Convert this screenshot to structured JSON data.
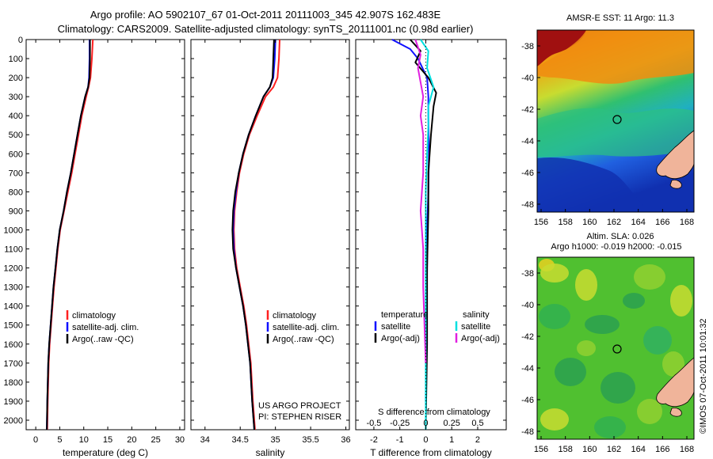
{
  "title": {
    "line1": "Argo profile: AO 5902107_67 01-Oct-2011 20111003_345 42.907S 162.483E",
    "line2": "Climatology: CARS2009. Satellite-adjusted climatology: synTS_20111001.nc (0.98d earlier)"
  },
  "credits": {
    "project": "US ARGO PROJECT",
    "pi": "PI: STEPHEN RISER",
    "stamp": "©IMOS 07-Oct-2011 10:01:32"
  },
  "colors": {
    "climatology": "#ff2020",
    "satellite": "#1010ff",
    "argo": "#000000",
    "sal_satellite": "#00e0e0",
    "sal_argo": "#e020e0",
    "land": "#f0b49a"
  },
  "chart_data": [
    {
      "id": "temperature",
      "type": "line",
      "xlabel": "temperature (deg C)",
      "ylabel": "",
      "xlim": [
        -2,
        31
      ],
      "ylim": [
        2050,
        0
      ],
      "xticks": [
        0,
        5,
        10,
        15,
        20,
        25,
        30
      ],
      "xtick_labels": [
        "0",
        "5",
        "10",
        "15",
        "20",
        "25",
        "30"
      ],
      "yticks": [
        0,
        100,
        200,
        300,
        400,
        500,
        600,
        700,
        800,
        900,
        1000,
        1100,
        1200,
        1300,
        1400,
        1500,
        1600,
        1700,
        1800,
        1900,
        2000
      ],
      "ytick_labels": [
        "0",
        "100",
        "200",
        "300",
        "400",
        "500",
        "600",
        "700",
        "800",
        "900",
        "1000",
        "1100",
        "1200",
        "1300",
        "1400",
        "1500",
        "1600",
        "1700",
        "1800",
        "1900",
        "2000"
      ],
      "legend": [
        "climatology",
        "satellite-adj. clim.",
        "Argo(..raw -QC)"
      ],
      "series": [
        {
          "name": "climatology",
          "color": "#ff2020",
          "x": [
            11.9,
            11.7,
            11.4,
            11.0,
            10.5,
            9.6,
            8.9,
            8.2,
            7.5,
            6.7,
            5.9,
            5.1,
            4.6,
            4.2,
            3.8,
            3.5,
            3.2,
            2.9,
            2.7,
            2.5,
            2.4
          ],
          "y": [
            0,
            100,
            200,
            250,
            300,
            400,
            500,
            600,
            700,
            800,
            900,
            1000,
            1100,
            1200,
            1300,
            1400,
            1500,
            1600,
            1700,
            1900,
            2050
          ]
        },
        {
          "name": "satellite",
          "color": "#1010ff",
          "x": [
            11.2,
            11.2,
            11.1,
            10.9,
            10.3,
            9.4,
            8.7,
            8.0,
            7.3,
            6.5,
            5.8,
            5.0,
            4.5,
            4.1,
            3.7,
            3.4,
            3.1,
            2.8,
            2.6,
            2.4,
            2.3
          ],
          "y": [
            0,
            100,
            200,
            250,
            300,
            400,
            500,
            600,
            700,
            800,
            900,
            1000,
            1100,
            1200,
            1300,
            1400,
            1500,
            1600,
            1700,
            1900,
            2050
          ]
        },
        {
          "name": "argo",
          "color": "#000000",
          "x": [
            11.3,
            11.3,
            11.2,
            10.9,
            10.3,
            9.4,
            8.7,
            8.0,
            7.3,
            6.5,
            5.8,
            5.0,
            4.5,
            4.1,
            3.7,
            3.4,
            3.1,
            2.8,
            2.6,
            2.4,
            2.3
          ],
          "y": [
            0,
            100,
            200,
            250,
            300,
            400,
            500,
            600,
            700,
            800,
            900,
            1000,
            1100,
            1200,
            1300,
            1400,
            1500,
            1600,
            1700,
            1900,
            2050
          ]
        }
      ]
    },
    {
      "id": "salinity",
      "type": "line",
      "xlabel": "salinity",
      "ylabel": "",
      "xlim": [
        33.8,
        36.05
      ],
      "ylim": [
        2050,
        0
      ],
      "xticks": [
        34,
        34.5,
        35,
        35.5,
        36
      ],
      "xtick_labels": [
        "34",
        "34.5",
        "35",
        "35.5",
        "36"
      ],
      "legend": [
        "climatology",
        "satellite-adj. clim.",
        "Argo(..raw -QC)"
      ],
      "series": [
        {
          "name": "climatology",
          "color": "#ff2020",
          "x": [
            35.06,
            35.05,
            35.03,
            34.97,
            34.86,
            34.74,
            34.63,
            34.55,
            34.49,
            34.45,
            34.42,
            34.41,
            34.42,
            34.45,
            34.5,
            34.55,
            34.59,
            34.62,
            34.65,
            34.68,
            34.71
          ],
          "y": [
            0,
            100,
            200,
            250,
            300,
            400,
            500,
            600,
            700,
            800,
            900,
            1000,
            1100,
            1200,
            1300,
            1400,
            1500,
            1600,
            1700,
            1900,
            2050
          ]
        },
        {
          "name": "satellite",
          "color": "#1010ff",
          "x": [
            35.0,
            34.99,
            34.97,
            34.92,
            34.83,
            34.72,
            34.62,
            34.54,
            34.48,
            34.44,
            34.41,
            34.4,
            34.41,
            34.44,
            34.49,
            34.54,
            34.58,
            34.61,
            34.64,
            34.67,
            34.7
          ],
          "y": [
            0,
            100,
            200,
            250,
            300,
            400,
            500,
            600,
            700,
            800,
            900,
            1000,
            1100,
            1200,
            1300,
            1400,
            1500,
            1600,
            1700,
            1900,
            2050
          ]
        },
        {
          "name": "argo",
          "color": "#000000",
          "x": [
            34.98,
            34.97,
            34.96,
            34.92,
            34.83,
            34.72,
            34.62,
            34.54,
            34.48,
            34.43,
            34.4,
            34.39,
            34.4,
            34.44,
            34.49,
            34.54,
            34.58,
            34.61,
            34.64,
            34.67,
            34.7
          ],
          "y": [
            0,
            100,
            200,
            250,
            300,
            400,
            500,
            600,
            700,
            800,
            900,
            1000,
            1100,
            1200,
            1300,
            1400,
            1500,
            1600,
            1700,
            1900,
            2050
          ]
        }
      ]
    },
    {
      "id": "differences",
      "type": "line",
      "xlabel": "T difference from climatology",
      "xlabel_top": "S difference from climatology",
      "xlim": [
        -2.7,
        3.1
      ],
      "ylim": [
        2050,
        0
      ],
      "xticks": [
        -2,
        -1,
        0,
        1,
        2
      ],
      "xtick_labels": [
        "-2",
        "-1",
        "0",
        "1",
        "2"
      ],
      "sticks_labels": [
        "-0.5",
        "-0.25",
        "0",
        "0.25",
        "0.5"
      ],
      "sticks_positions": [
        -2,
        -1,
        0,
        1,
        2
      ],
      "legend_titles": [
        "temperature",
        "salinity"
      ],
      "legend": [
        "satellite",
        "Argo(-adj)",
        "satellite",
        "Argo(-adj)"
      ],
      "series": [
        {
          "name": "T satellite",
          "color": "#1010ff",
          "x": [
            -1.3,
            -0.6,
            -0.3,
            0.05,
            0.1,
            0.1,
            0.12,
            0.1,
            0.05,
            0.05,
            0.02,
            0.0
          ],
          "y": [
            0,
            50,
            100,
            200,
            300,
            400,
            600,
            800,
            1000,
            1200,
            1500,
            1900
          ]
        },
        {
          "name": "T argo",
          "color": "#000000",
          "x": [
            -0.6,
            -0.2,
            -0.4,
            0.1,
            0.4,
            0.3,
            0.2,
            0.1,
            0.1,
            0.05,
            0.05,
            0.0
          ],
          "y": [
            0,
            60,
            120,
            200,
            280,
            350,
            500,
            700,
            900,
            1200,
            1600,
            2050
          ]
        },
        {
          "name": "S satellite",
          "color": "#00e0e0",
          "x": [
            -0.2,
            0.1,
            0.05,
            0.3,
            0.1,
            0.1,
            0.05,
            0.0,
            0.0,
            0.0,
            0.0,
            0.0
          ],
          "y": [
            0,
            60,
            150,
            250,
            350,
            450,
            600,
            800,
            1000,
            1300,
            1700,
            2050
          ]
        },
        {
          "name": "S argo",
          "color": "#e020e0",
          "x": [
            -0.4,
            -0.2,
            -0.3,
            -0.1,
            -0.2,
            -0.1,
            -0.1,
            -0.2,
            -0.1,
            -0.1,
            -0.05,
            0.0
          ],
          "y": [
            0,
            80,
            150,
            300,
            400,
            500,
            700,
            900,
            1100,
            1300,
            1500,
            1700
          ]
        }
      ]
    }
  ],
  "maps": [
    {
      "id": "sst",
      "title": "AMSR-E SST: 11 Argo: 11.3",
      "subtitle": "",
      "xticks": [
        "156",
        "158",
        "160",
        "162",
        "164",
        "166",
        "168"
      ],
      "yticks": [
        "-38",
        "-40",
        "-42",
        "-44",
        "-46",
        "-48"
      ]
    },
    {
      "id": "sla",
      "title": "Altim. SLA: 0.026",
      "subtitle": "Argo h1000: -0.019 h2000: -0.015",
      "xticks": [
        "156",
        "158",
        "160",
        "162",
        "164",
        "166",
        "168"
      ],
      "yticks": [
        "-38",
        "-40",
        "-42",
        "-44",
        "-46",
        "-48"
      ]
    }
  ]
}
